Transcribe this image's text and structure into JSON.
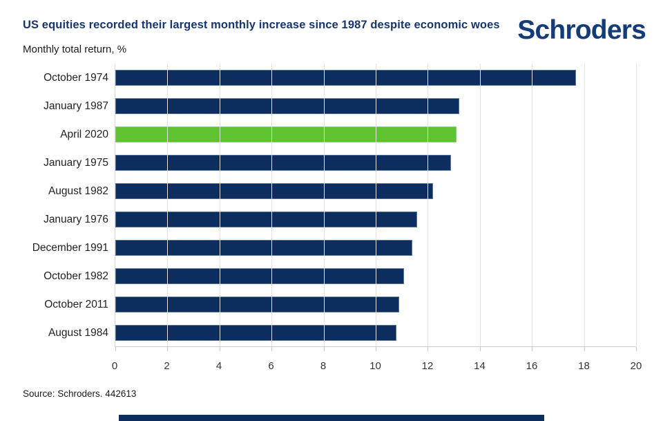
{
  "header": {
    "title": "US equities recorded their largest monthly increase since 1987 despite economic woes",
    "subtitle": "Monthly total return, %",
    "logo_text": "Schroders"
  },
  "footer": {
    "source": "Source: Schroders. 442613"
  },
  "colors": {
    "bar_navy": "#0D2D5E",
    "bar_highlight_green": "#5FC230",
    "title_navy": "#17366E",
    "logo_navy": "#143C78",
    "gridline_gray": "#E3E3E3"
  },
  "chart_data": {
    "type": "bar",
    "orientation": "horizontal",
    "title": "US equities recorded their largest monthly increase since 1987 despite economic woes",
    "value_label": "Monthly total return, %",
    "categories": [
      "October 1974",
      "January 1987",
      "April 2020",
      "January 1975",
      "August 1982",
      "January 1976",
      "December 1991",
      "October 1982",
      "October 2011",
      "August 1984"
    ],
    "values": [
      17.7,
      13.2,
      13.1,
      12.9,
      12.2,
      11.6,
      11.4,
      11.1,
      10.9,
      10.8
    ],
    "highlighted_category": "April 2020",
    "xlim": [
      0,
      20
    ],
    "xticks": [
      0,
      2,
      4,
      6,
      8,
      10,
      12,
      14,
      16,
      18,
      20
    ],
    "grid": true,
    "legend": false
  }
}
